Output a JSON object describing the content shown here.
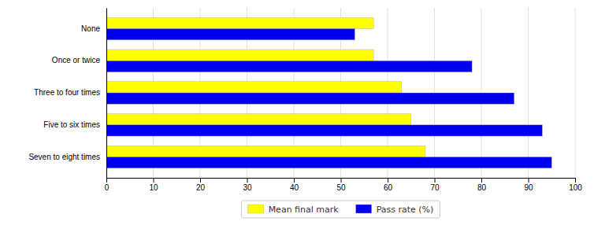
{
  "chart_data": {
    "type": "bar",
    "orientation": "horizontal",
    "categories": [
      "Seven to eight times",
      "Five to six times",
      "Three to four times",
      "Once or twice",
      "None"
    ],
    "series": [
      {
        "name": "Mean final mark",
        "color": "#FFFF00",
        "values": [
          68,
          65,
          63,
          57,
          57
        ]
      },
      {
        "name": "Pass rate (%)",
        "color": "#0000EE",
        "values": [
          95,
          93,
          87,
          78,
          53
        ]
      }
    ],
    "xlim": [
      0,
      100
    ],
    "xticks": [
      0,
      10,
      20,
      30,
      40,
      50,
      60,
      70,
      80,
      90,
      100
    ],
    "grid": true,
    "legend": "bottom"
  }
}
